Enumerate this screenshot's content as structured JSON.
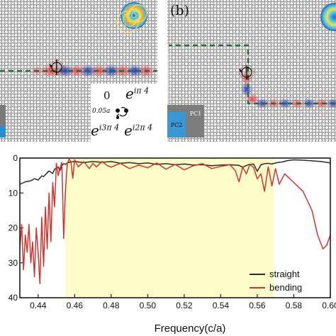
{
  "figure": {
    "panel_a": {
      "math_labels": {
        "m0": "0",
        "m1_base": "e",
        "m1_exp": "iπ 4",
        "m2": "0.05a",
        "m3_base": "e",
        "m3_exp": "i3π 4",
        "m4_base": "e",
        "m4_exp": "i2π 4"
      }
    },
    "panel_b": {
      "letter": "(b)",
      "pc1_label": "PC1",
      "pc2_label": "PC2"
    }
  },
  "chart_data": {
    "type": "line",
    "xlabel": "Frequency(c/a)",
    "ylabel": "",
    "xlim": [
      0.43,
      0.6
    ],
    "ylim": [
      40,
      0
    ],
    "y_inverted": true,
    "x_ticks": [
      "0.44",
      "0.46",
      "0.48",
      "0.50",
      "0.52",
      "0.54",
      "0.56",
      "0.58",
      "0.60"
    ],
    "y_ticks": [
      "0",
      "10",
      "20",
      "30",
      "40"
    ],
    "bandgap_highlight": {
      "from": 0.455,
      "to": 0.569,
      "color": "#fdfbc8"
    },
    "legend_position": "bottom-right",
    "series": [
      {
        "name": "straight",
        "color": "#2b2b2b",
        "x": [
          0.43,
          0.433,
          0.436,
          0.438,
          0.44,
          0.442,
          0.443,
          0.445,
          0.446,
          0.448,
          0.449,
          0.451,
          0.452,
          0.453,
          0.454,
          0.455,
          0.456,
          0.458,
          0.46,
          0.465,
          0.47,
          0.475,
          0.48,
          0.485,
          0.49,
          0.495,
          0.5,
          0.505,
          0.51,
          0.515,
          0.52,
          0.525,
          0.53,
          0.535,
          0.54,
          0.545,
          0.55,
          0.552,
          0.555,
          0.558,
          0.56,
          0.562,
          0.564,
          0.566,
          0.568,
          0.57,
          0.572,
          0.574,
          0.576,
          0.578,
          0.58,
          0.585,
          0.59,
          0.595,
          0.6
        ],
        "y": [
          7.5,
          6.8,
          6.5,
          5.9,
          6.3,
          5.1,
          5.3,
          4.2,
          3.7,
          4.4,
          3.2,
          2.6,
          3.6,
          2.2,
          1.6,
          1.8,
          1.4,
          1.1,
          1.0,
          1.3,
          1.0,
          1.2,
          1.0,
          1.5,
          1.3,
          1.6,
          1.4,
          1.8,
          1.6,
          1.9,
          1.7,
          2.0,
          1.9,
          2.2,
          2.0,
          1.9,
          2.1,
          2.6,
          1.9,
          1.7,
          3.8,
          1.9,
          1.6,
          1.5,
          1.7,
          1.4,
          1.2,
          1.1,
          0.8,
          0.6,
          0.5,
          0.6,
          0.8,
          1.0,
          1.4
        ]
      },
      {
        "name": "bending",
        "color": "#d1342f",
        "x": [
          0.43,
          0.431,
          0.432,
          0.433,
          0.434,
          0.435,
          0.436,
          0.437,
          0.438,
          0.439,
          0.44,
          0.441,
          0.442,
          0.443,
          0.444,
          0.445,
          0.446,
          0.447,
          0.448,
          0.449,
          0.45,
          0.451,
          0.452,
          0.453,
          0.454,
          0.455,
          0.456,
          0.457,
          0.458,
          0.459,
          0.46,
          0.462,
          0.465,
          0.468,
          0.47,
          0.472,
          0.475,
          0.478,
          0.48,
          0.485,
          0.49,
          0.495,
          0.5,
          0.505,
          0.51,
          0.515,
          0.52,
          0.525,
          0.53,
          0.535,
          0.54,
          0.545,
          0.548,
          0.55,
          0.552,
          0.554,
          0.556,
          0.558,
          0.56,
          0.562,
          0.564,
          0.566,
          0.568,
          0.57,
          0.572,
          0.575,
          0.58,
          0.585,
          0.59,
          0.593,
          0.596,
          0.598,
          0.6
        ],
        "y": [
          26,
          19,
          32,
          22,
          27,
          19,
          30,
          24,
          34,
          20,
          27,
          36,
          17,
          31,
          14,
          26,
          10,
          24,
          7,
          14,
          1.5,
          5,
          2.8,
          1.2,
          23,
          9,
          1.5,
          0.3,
          1.2,
          5.8,
          0.5,
          2.5,
          1.0,
          3.0,
          1.5,
          2.5,
          1.0,
          2.2,
          2.6,
          1.5,
          3.0,
          2.0,
          2.8,
          1.4,
          3.2,
          1.8,
          3.4,
          2.2,
          1.6,
          3.0,
          2.4,
          1.9,
          3.6,
          6.8,
          2.6,
          4.5,
          1.8,
          2.7,
          6.0,
          4.5,
          9.5,
          2.5,
          8.0,
          3.0,
          7.5,
          4.5,
          7.0,
          9.5,
          15.0,
          22.0,
          26.0,
          25.0,
          22.0
        ]
      }
    ]
  }
}
